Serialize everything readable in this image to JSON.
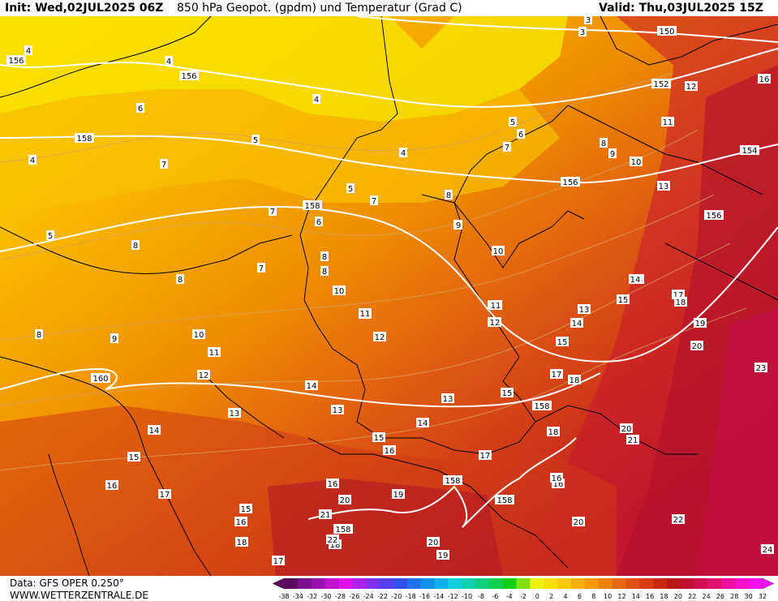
{
  "header": {
    "init": "Init: Wed,02JUL2025 06Z",
    "title": "850 hPa Geopot. (gpdm) und Temperatur (Grad C)",
    "valid": "Valid: Thu,03JUL2025 15Z"
  },
  "footer": {
    "data_source": "Data: GFS OPER 0.250°",
    "website": "WWW.WETTERZENTRALE.DE"
  },
  "colorbar": {
    "ticks": [
      "-38",
      "-34",
      "-32",
      "-30",
      "-28",
      "-26",
      "-24",
      "-22",
      "-20",
      "-18",
      "-16",
      "-14",
      "-12",
      "-10",
      "-8",
      "-6",
      "-4",
      "-2",
      "0",
      "2",
      "4",
      "6",
      "8",
      "10",
      "12",
      "14",
      "16",
      "18",
      "20",
      "22",
      "24",
      "26",
      "28",
      "30",
      "32"
    ],
    "colors": [
      "#5a0a5a",
      "#7a1090",
      "#9a10b0",
      "#c010d0",
      "#e010f0",
      "#b020f0",
      "#8030f0",
      "#5040f0",
      "#3050f0",
      "#2070f0",
      "#1090f0",
      "#10b0f0",
      "#10d0e0",
      "#10d0b0",
      "#10d080",
      "#10d050",
      "#10d010",
      "#80e010",
      "#f0f010",
      "#f8e000",
      "#f8c800",
      "#f8b000",
      "#f89800",
      "#f08000",
      "#e86810",
      "#e05010",
      "#d83c10",
      "#c82810",
      "#b81818",
      "#c01030",
      "#d01050",
      "#e01070",
      "#f010a0",
      "#f810c8",
      "#f810f0"
    ]
  },
  "legend": {
    "contour_units": "gpdm",
    "temperature_units": "Grad C"
  },
  "temperature_labels": [
    {
      "t": "4"
    },
    {
      "t": "4"
    },
    {
      "t": "4"
    },
    {
      "t": "4"
    },
    {
      "t": "4"
    },
    {
      "t": "5"
    },
    {
      "t": "5"
    },
    {
      "t": "5"
    },
    {
      "t": "5"
    },
    {
      "t": "6"
    },
    {
      "t": "6"
    },
    {
      "t": "6"
    },
    {
      "t": "7"
    },
    {
      "t": "7"
    },
    {
      "t": "7"
    },
    {
      "t": "7"
    },
    {
      "t": "7"
    },
    {
      "t": "8"
    },
    {
      "t": "8"
    },
    {
      "t": "8"
    },
    {
      "t": "8"
    },
    {
      "t": "8"
    },
    {
      "t": "8"
    },
    {
      "t": "8"
    },
    {
      "t": "9"
    },
    {
      "t": "9"
    },
    {
      "t": "9"
    },
    {
      "t": "10"
    },
    {
      "t": "10"
    },
    {
      "t": "10"
    },
    {
      "t": "10"
    },
    {
      "t": "11"
    },
    {
      "t": "11"
    },
    {
      "t": "11"
    },
    {
      "t": "11"
    },
    {
      "t": "12"
    },
    {
      "t": "12"
    },
    {
      "t": "12"
    },
    {
      "t": "12"
    },
    {
      "t": "13"
    },
    {
      "t": "13"
    },
    {
      "t": "13"
    },
    {
      "t": "13"
    },
    {
      "t": "14"
    },
    {
      "t": "14"
    },
    {
      "t": "14"
    },
    {
      "t": "14"
    },
    {
      "t": "14"
    },
    {
      "t": "15"
    },
    {
      "t": "15"
    },
    {
      "t": "15"
    },
    {
      "t": "15"
    },
    {
      "t": "15"
    },
    {
      "t": "15"
    },
    {
      "t": "16"
    },
    {
      "t": "16"
    },
    {
      "t": "16"
    },
    {
      "t": "16"
    },
    {
      "t": "16"
    },
    {
      "t": "16"
    },
    {
      "t": "17"
    },
    {
      "t": "17"
    },
    {
      "t": "17"
    },
    {
      "t": "17"
    },
    {
      "t": "17"
    },
    {
      "t": "18"
    },
    {
      "t": "18"
    },
    {
      "t": "18"
    },
    {
      "t": "18"
    },
    {
      "t": "18"
    },
    {
      "t": "19"
    },
    {
      "t": "19"
    },
    {
      "t": "19"
    },
    {
      "t": "20"
    },
    {
      "t": "20"
    },
    {
      "t": "20"
    },
    {
      "t": "20"
    },
    {
      "t": "20"
    },
    {
      "t": "21"
    },
    {
      "t": "21"
    },
    {
      "t": "22"
    },
    {
      "t": "22"
    },
    {
      "t": "23"
    },
    {
      "t": "24"
    },
    {
      "t": "3"
    },
    {
      "t": "3"
    },
    {
      "t": "13"
    },
    {
      "t": "12"
    },
    {
      "t": "11"
    },
    {
      "t": "10"
    },
    {
      "t": "9"
    },
    {
      "t": "12"
    },
    {
      "t": "14"
    },
    {
      "t": "16"
    },
    {
      "t": "13"
    },
    {
      "t": "11"
    }
  ],
  "geopotential_labels": [
    {
      "t": "150"
    },
    {
      "t": "152"
    },
    {
      "t": "154"
    },
    {
      "t": "156"
    },
    {
      "t": "156"
    },
    {
      "t": "156"
    },
    {
      "t": "156"
    },
    {
      "t": "158"
    },
    {
      "t": "158"
    },
    {
      "t": "158"
    },
    {
      "t": "158"
    },
    {
      "t": "158"
    },
    {
      "t": "158"
    },
    {
      "t": "160"
    }
  ]
}
